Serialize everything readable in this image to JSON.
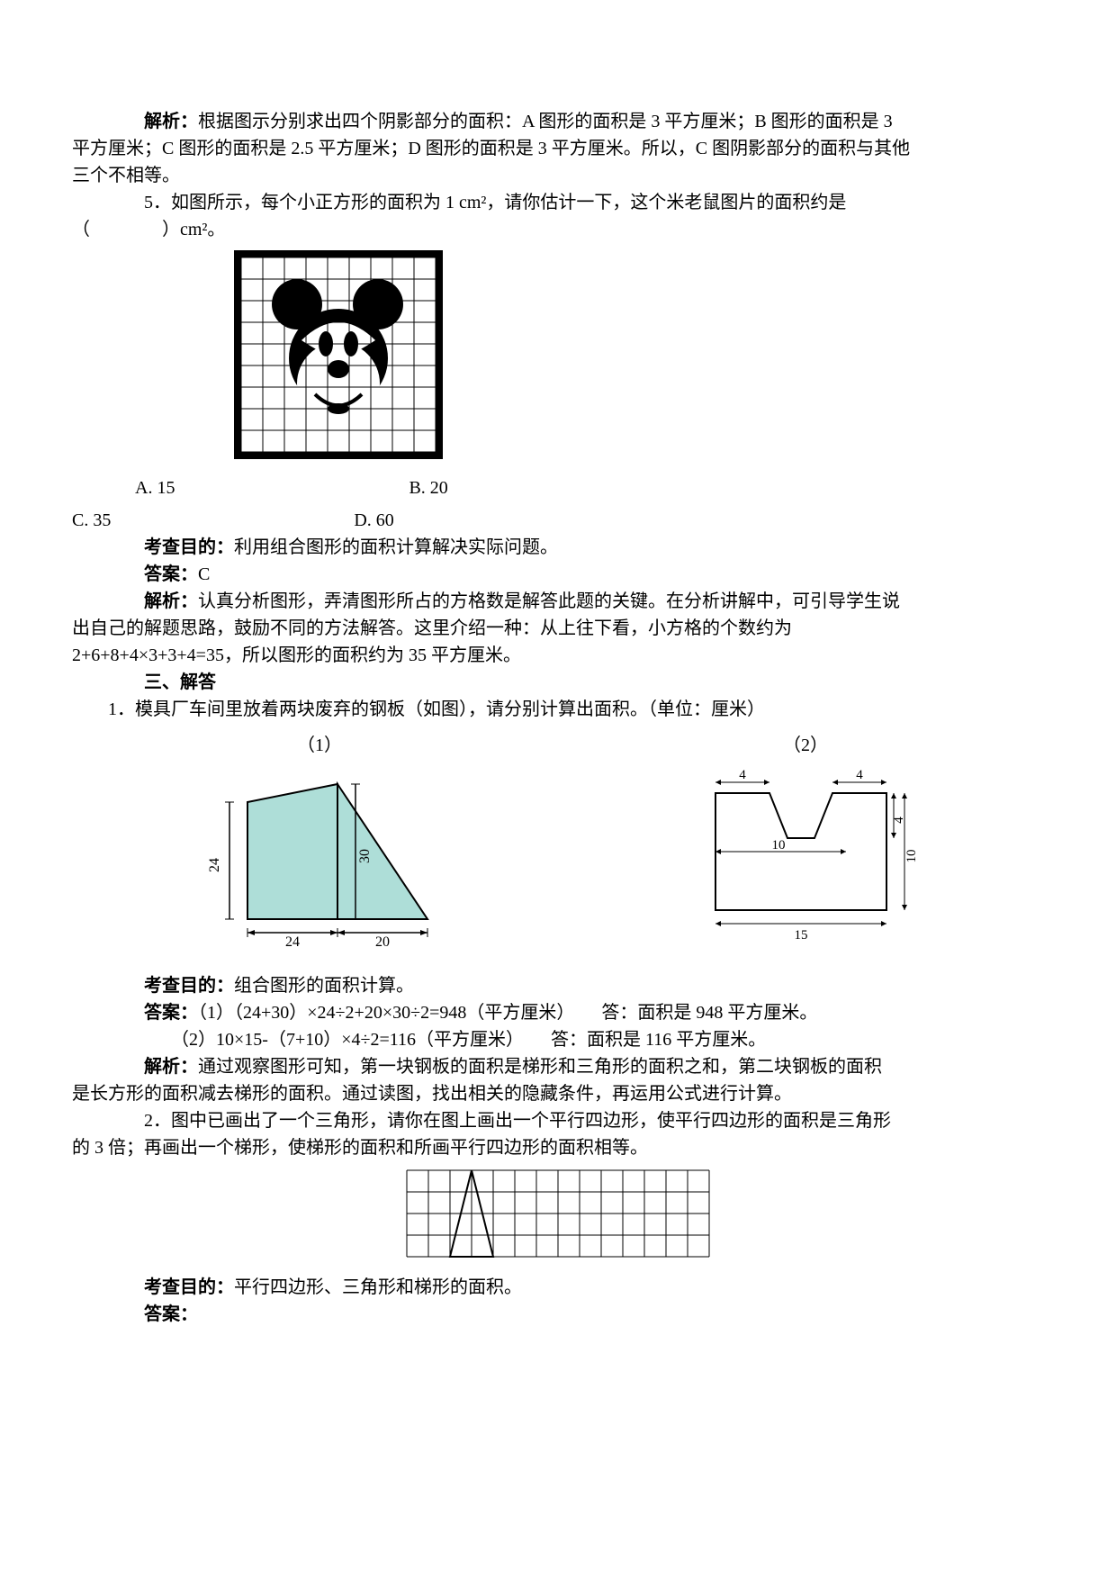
{
  "text": {
    "analysis1a": "　　　　解析：",
    "analysis1b": "根据图示分别求出四个阴影部分的面积：A 图形的面积是 3 平方厘米；B 图形的面积是 3",
    "analysis1c": "平方厘米；C 图形的面积是 2.5 平方厘米；D 图形的面积是 3 平方厘米。所以，C 图阴影部分的面积与其他",
    "analysis1d": "三个不相等。",
    "q5a": "　　　　5．如图所示，每个小正方形的面积为 1 cm²，请你估计一下，这个米老鼠图片的面积约是",
    "q5b": "（　　　　）cm²。",
    "optA": "A. 15",
    "optB": "B. 20",
    "optC": "C. 35",
    "optD": "D. 60",
    "goal1pre": "　　　　考查目的：",
    "goal1": "利用组合图形的面积计算解决实际问题。",
    "ans1pre": "　　　　答案：",
    "ans1": "C",
    "a5pre": "　　　　解析：",
    "a5a": "认真分析图形，弄清图形所占的方格数是解答此题的关键。在分析讲解中，可引导学生说",
    "a5b": "出自己的解题思路，鼓励不同的方法解答。这里介绍一种：从上往下看，小方格的个数约为",
    "a5c": "2+6+8+4×3+3+4=35，所以图形的面积约为 35 平方厘米。",
    "section3": "　　　　三、解答",
    "p1": "　　1．模具厂车间里放着两块废弃的钢板（如图），请分别计算出面积。（单位：厘米）",
    "fig1label": "（1）",
    "fig2label": "（2）",
    "goal2pre": "　　　　考查目的：",
    "goal2": "组合图形的面积计算。",
    "ans2pre": "　　　　答案：",
    "ans2a": "（1）（24+30）×24÷2+20×30÷2=948（平方厘米）　　答：面积是 948 平方厘米。",
    "ans2b": "　　　　　　（2）10×15-（7+10）×4÷2=116（平方厘米）　　答：面积是 116 平方厘米。",
    "a2pre": "　　　　解析：",
    "a2a": "通过观察图形可知，第一块钢板的面积是梯形和三角形的面积之和，第二块钢板的面积",
    "a2b": "是长方形的面积减去梯形的面积。通过读图，找出相关的隐藏条件，再运用公式进行计算。",
    "p2a": "　　　　2．图中已画出了一个三角形，请你在图上画出一个平行四边形，使平行四边形的面积是三角形",
    "p2b": "的 3 倍；再画出一个梯形，使梯形的面积和所画平行四边形的面积相等。",
    "goal3pre": "　　　　考查目的：",
    "goal3": "平行四边形、三角形和梯形的面积。",
    "ans3pre": "　　　　答案："
  },
  "mickey": {
    "grid": 9,
    "cell": 24,
    "bg": "#000000",
    "fg": "#ffffff",
    "ink": "#000000"
  },
  "fig1": {
    "fill": "#aeded8",
    "stroke": "#000000",
    "labels": {
      "l24v": "24",
      "l30v": "30",
      "l24h": "24",
      "l20h": "20"
    }
  },
  "fig2": {
    "stroke": "#000000",
    "labels": {
      "top4a": "4",
      "top4b": "4",
      "mid4": "4",
      "mid10": "10",
      "r10": "10",
      "bot15": "15"
    }
  },
  "grid3": {
    "cols": 14,
    "rows": 4,
    "cell": 24,
    "stroke": "#000000"
  }
}
